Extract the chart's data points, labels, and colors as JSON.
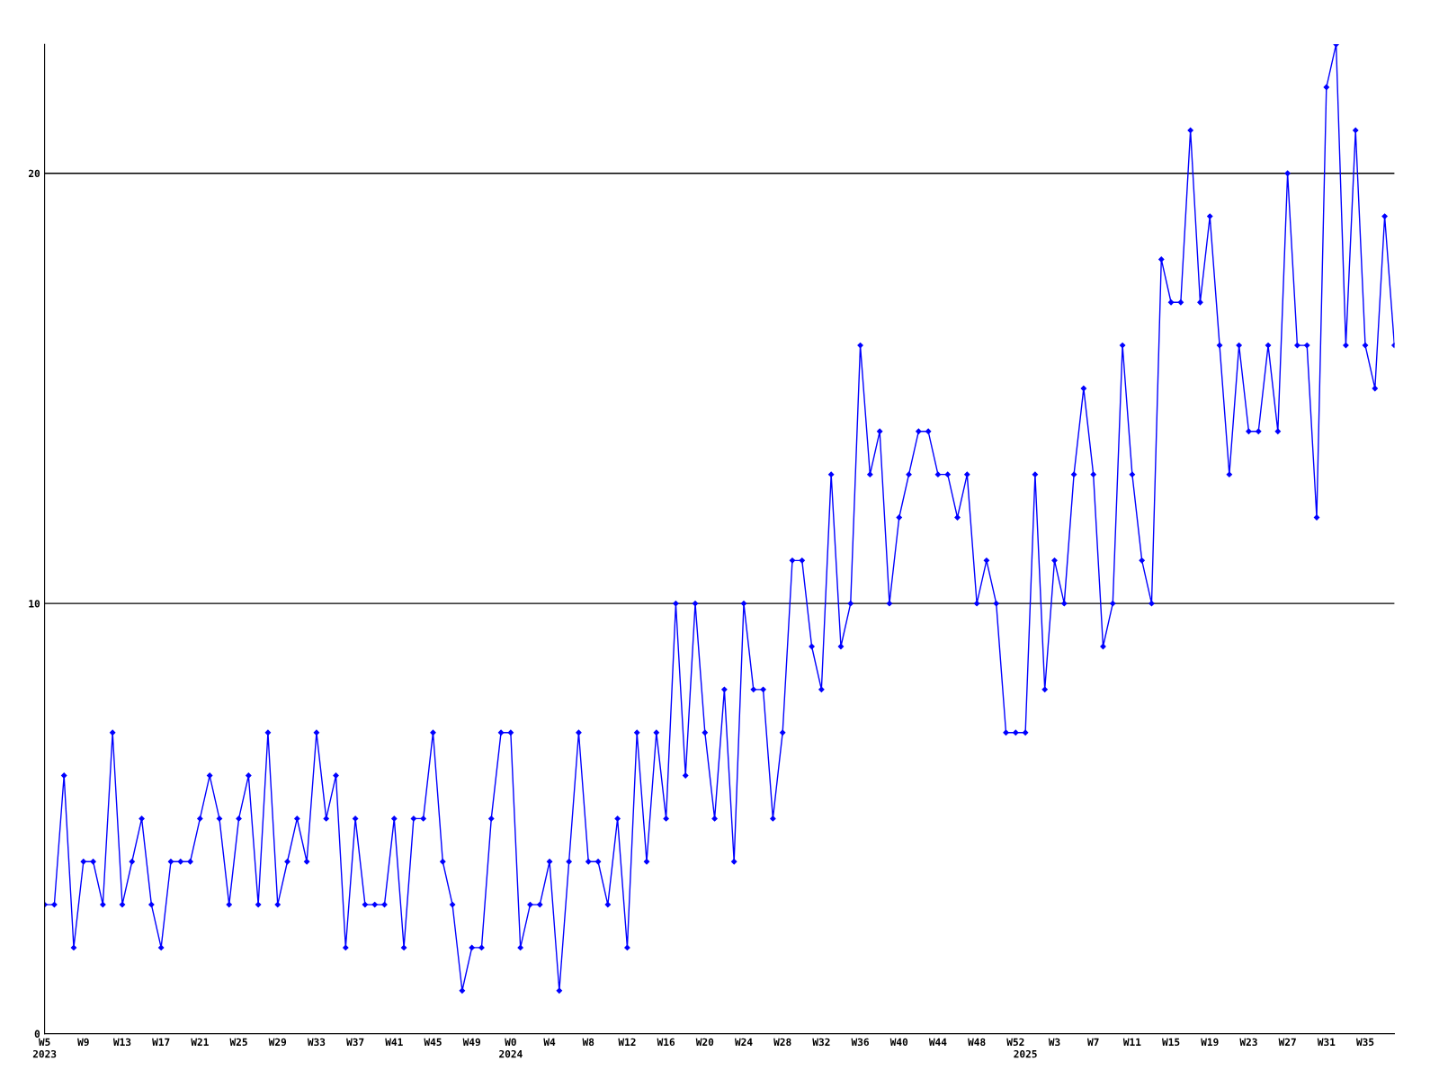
{
  "chart_data": {
    "type": "line",
    "categories": [
      "W5\n2023",
      null,
      null,
      null,
      "W9",
      null,
      null,
      null,
      "W13",
      null,
      null,
      null,
      "W17",
      null,
      null,
      null,
      "W21",
      null,
      null,
      null,
      "W25",
      null,
      null,
      null,
      "W29",
      null,
      null,
      null,
      "W33",
      null,
      null,
      null,
      "W37",
      null,
      null,
      null,
      "W41",
      null,
      null,
      null,
      "W45",
      null,
      null,
      null,
      "W49",
      null,
      null,
      null,
      "W0\n2024",
      null,
      null,
      null,
      "W4",
      null,
      null,
      null,
      "W8",
      null,
      null,
      null,
      "W12",
      null,
      null,
      null,
      "W16",
      null,
      null,
      null,
      "W20",
      null,
      null,
      null,
      "W24",
      null,
      null,
      null,
      "W28",
      null,
      null,
      null,
      "W32",
      null,
      null,
      null,
      "W36",
      null,
      null,
      null,
      "W40",
      null,
      null,
      null,
      "W44",
      null,
      null,
      null,
      "W48",
      null,
      null,
      null,
      "W52",
      "\n2025",
      null,
      null,
      "W3",
      null,
      null,
      null,
      "W7",
      null,
      null,
      null,
      "W11",
      null,
      null,
      null,
      "W15",
      null,
      null,
      null,
      "W19",
      null,
      null,
      null,
      "W23",
      null,
      null,
      null,
      "W27",
      null,
      null,
      null,
      "W31",
      null,
      null,
      null,
      "W35",
      null,
      null,
      null
    ],
    "series": [
      {
        "color": "#0000ff",
        "values": [
          3,
          3,
          6,
          2,
          4,
          4,
          3,
          7,
          3,
          4,
          5,
          3,
          2,
          4,
          4,
          4,
          5,
          6,
          5,
          3,
          5,
          6,
          3,
          7,
          3,
          4,
          5,
          4,
          7,
          5,
          6,
          2,
          5,
          3,
          3,
          3,
          5,
          2,
          5,
          5,
          7,
          4,
          3,
          1,
          2,
          2,
          5,
          7,
          7,
          2,
          3,
          3,
          4,
          1,
          4,
          7,
          4,
          4,
          3,
          5,
          2,
          7,
          4,
          7,
          5,
          10,
          6,
          10,
          7,
          5,
          8,
          4,
          10,
          8,
          8,
          5,
          7,
          11,
          11,
          9,
          8,
          13,
          9,
          10,
          16,
          13,
          14,
          10,
          12,
          13,
          14,
          14,
          13,
          13,
          12,
          13,
          10,
          11,
          10,
          7,
          7,
          7,
          13,
          8,
          11,
          10,
          13,
          15,
          13,
          9,
          10,
          16,
          13,
          11,
          10,
          18,
          17,
          17,
          21,
          17,
          19,
          16,
          13,
          16,
          14,
          14,
          16,
          14,
          20,
          16,
          16,
          12,
          22,
          23,
          16,
          21,
          16,
          15,
          19,
          16
        ]
      }
    ],
    "ylim": [
      0,
      23
    ],
    "yticks": [
      0,
      10,
      20
    ],
    "grid": "y",
    "marker": "diamond",
    "line_style": "solid"
  }
}
